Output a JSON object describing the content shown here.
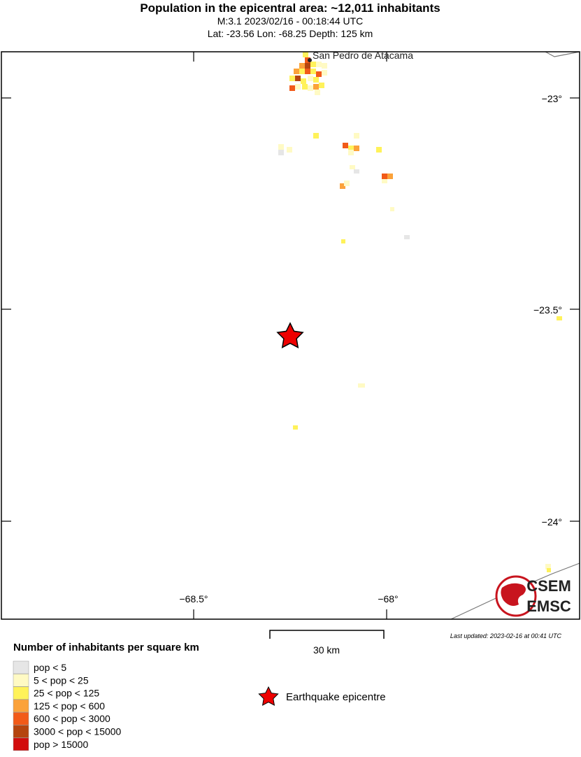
{
  "header": {
    "title": "Population in the epicentral area: ~12,011 inhabitants",
    "line1": "M:3.1 2023/02/16 - 00:18:44 UTC",
    "line2": "Lat: -23.56 Lon: -68.25 Depth: 125 km"
  },
  "map": {
    "place": "San Pedro de Atacama",
    "lat_labels": [
      "−23°",
      "−23.5°",
      "−24°"
    ],
    "lon_labels": [
      "−68.5°",
      "−68°"
    ],
    "scale": "30 km",
    "updated": "Last updated: 2023-02-16 at 00:41 UTC",
    "logo": [
      "CSEM",
      "EMSC"
    ]
  },
  "legend": {
    "title": "Number of inhabitants per square km",
    "items": [
      {
        "label": "pop < 5",
        "color": "#e6e6e6"
      },
      {
        "label": "5 < pop < 25",
        "color": "#fffac4"
      },
      {
        "label": "25 < pop < 125",
        "color": "#fff25a"
      },
      {
        "label": "125 < pop < 600",
        "color": "#fba23a"
      },
      {
        "label": "600 < pop < 3000",
        "color": "#f25a18"
      },
      {
        "label": "3000 < pop < 15000",
        "color": "#b5450f"
      },
      {
        "label": "pop > 15000",
        "color": "#d20d0d"
      }
    ],
    "epicentre": "Earthquake epicentre"
  }
}
